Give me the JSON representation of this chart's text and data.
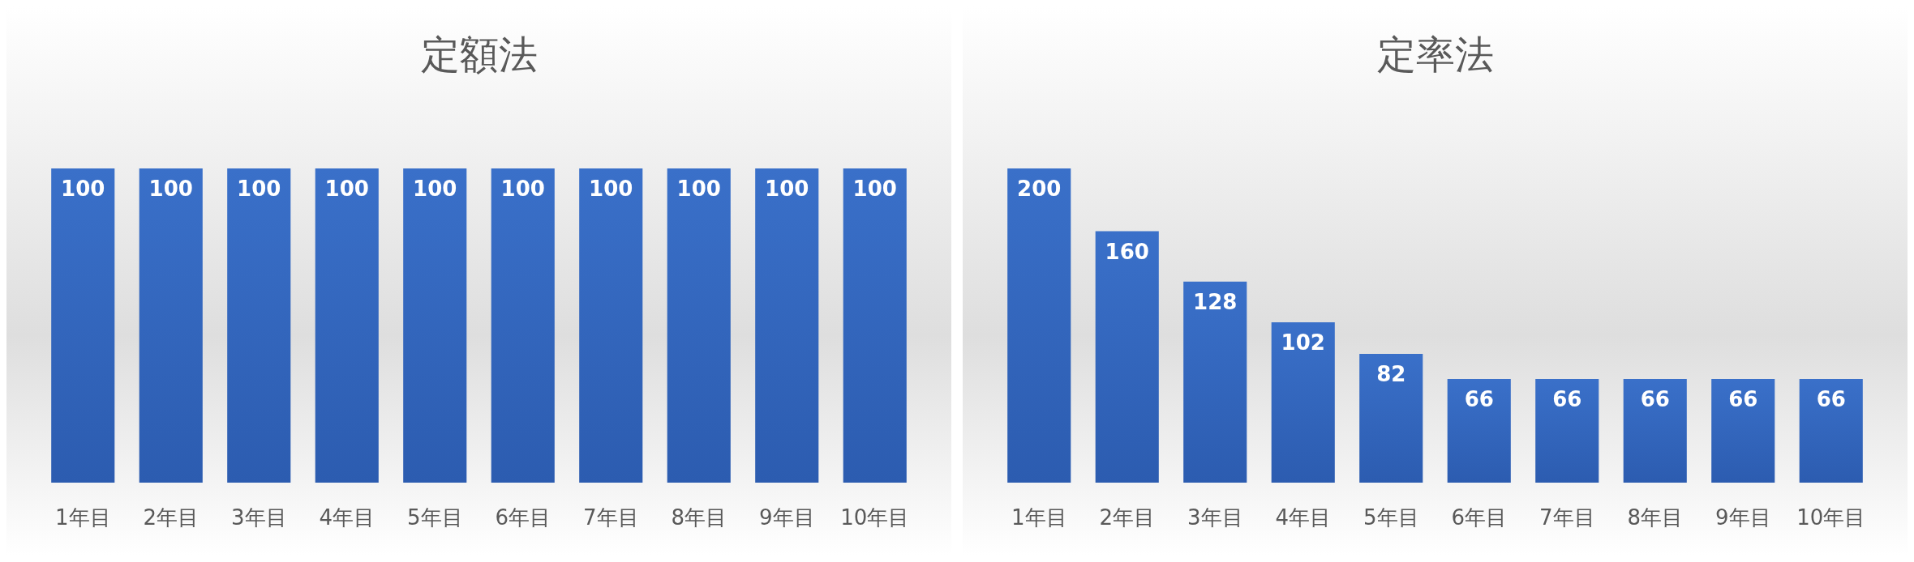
{
  "chart_data": [
    {
      "type": "bar",
      "title": "定額法",
      "categories": [
        "1年目",
        "2年目",
        "3年目",
        "4年目",
        "5年目",
        "6年目",
        "7年目",
        "8年目",
        "9年目",
        "10年目"
      ],
      "values": [
        100,
        100,
        100,
        100,
        100,
        100,
        100,
        100,
        100,
        100
      ],
      "color": "#3a70c9",
      "data_labels": true
    },
    {
      "type": "bar",
      "title": "定率法",
      "categories": [
        "1年目",
        "2年目",
        "3年目",
        "4年目",
        "5年目",
        "6年目",
        "7年目",
        "8年目",
        "9年目",
        "10年目"
      ],
      "values": [
        200,
        160,
        128,
        102,
        82,
        66,
        66,
        66,
        66,
        66
      ],
      "color": "#3a70c9",
      "data_labels": true
    }
  ]
}
